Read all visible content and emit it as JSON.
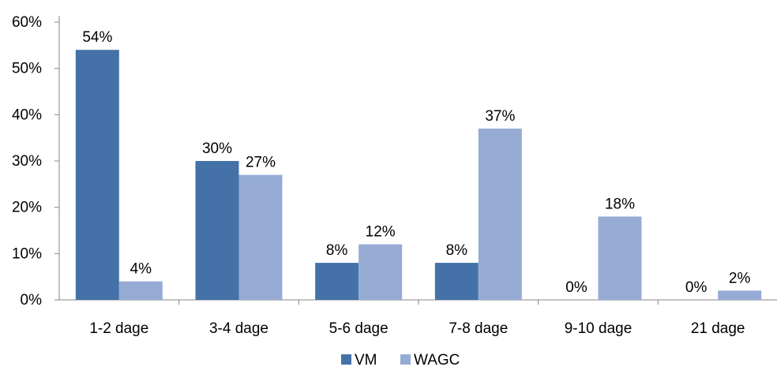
{
  "chart_data": {
    "type": "bar",
    "title": "",
    "xlabel": "",
    "ylabel": "",
    "categories": [
      "1-2 dage",
      "3-4 dage",
      "5-6 dage",
      "7-8 dage",
      "9-10 dage",
      "21 dage"
    ],
    "series": [
      {
        "name": "VM",
        "color": "#4472a8",
        "values": [
          54,
          30,
          8,
          8,
          0,
          0
        ],
        "labels": [
          "54%",
          "30%",
          "8%",
          "8%",
          "0%",
          "0%"
        ]
      },
      {
        "name": "WAGC",
        "color": "#96acd4",
        "values": [
          4,
          27,
          12,
          37,
          18,
          2
        ],
        "labels": [
          "4%",
          "27%",
          "12%",
          "37%",
          "18%",
          "2%"
        ]
      }
    ],
    "ylim": [
      0,
      60
    ],
    "yticks": [
      0,
      10,
      20,
      30,
      40,
      50,
      60
    ],
    "ytick_labels": [
      "0%",
      "10%",
      "20%",
      "30%",
      "40%",
      "50%",
      "60%"
    ],
    "grid": false,
    "legend_position": "bottom"
  }
}
